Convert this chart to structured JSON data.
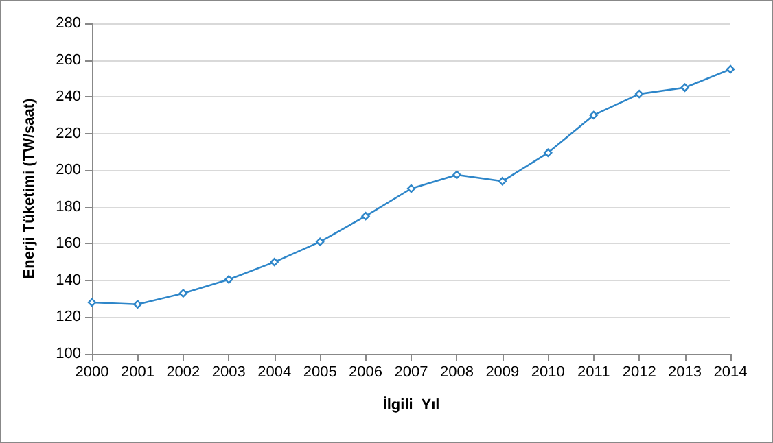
{
  "chart_data": {
    "type": "line",
    "xlabel": "İlgili  Yıl",
    "ylabel": "Enerji Tüketimi (TW/saat)",
    "categories": [
      "2000",
      "2001",
      "2002",
      "2003",
      "2004",
      "2005",
      "2006",
      "2007",
      "2008",
      "2009",
      "2010",
      "2011",
      "2012",
      "2013",
      "2014"
    ],
    "series": [
      {
        "color": "#2e86c9",
        "values": [
          128,
          127,
          133,
          140.5,
          150,
          161,
          175,
          190,
          197.5,
          194,
          209.5,
          230,
          241.5,
          245,
          255
        ]
      }
    ],
    "ylim": [
      100,
      280
    ],
    "yticks": [
      100,
      120,
      140,
      160,
      180,
      200,
      220,
      240,
      260,
      280
    ],
    "grid": "y",
    "marker": "diamond",
    "line_style": "solid"
  }
}
